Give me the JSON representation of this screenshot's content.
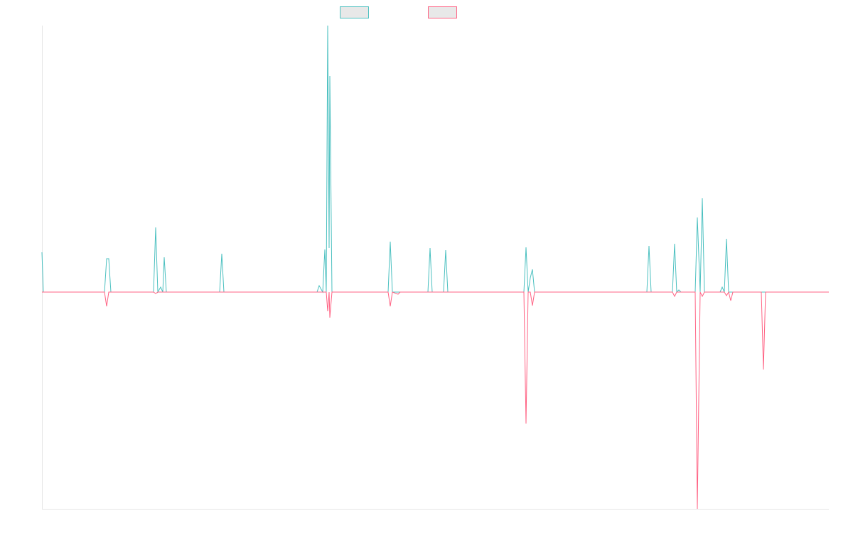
{
  "chart_data": {
    "type": "line",
    "x": [
      59,
      61,
      147,
      150,
      153,
      156,
      216,
      219,
      222,
      226,
      229,
      231,
      234,
      309,
      312,
      315,
      446,
      449,
      454,
      457,
      459,
      461,
      463,
      464,
      467,
      546,
      549,
      552,
      560,
      563,
      602,
      605,
      608,
      624,
      627,
      630,
      737,
      740,
      743,
      746,
      749,
      752,
      910,
      913,
      916,
      946,
      949,
      952,
      955,
      958,
      978,
      981,
      985,
      988,
      991,
      1013,
      1016,
      1019,
      1022,
      1025,
      1028,
      1031,
      1071,
      1074,
      1077,
      1166
    ],
    "xlim": [
      59,
      1166
    ],
    "ylim": [
      -305,
      375
    ],
    "series": [
      {
        "color": "#4bc0c0",
        "values": [
          56,
          0,
          0,
          47,
          47,
          0,
          0,
          91,
          0,
          7,
          0,
          49,
          0,
          0,
          54,
          0,
          0,
          9,
          0,
          60,
          0,
          375,
          62,
          304,
          0,
          0,
          71,
          0,
          0,
          0,
          0,
          62,
          0,
          0,
          59,
          0,
          0,
          63,
          0,
          20,
          32,
          0,
          0,
          65,
          0,
          0,
          68,
          0,
          3,
          0,
          0,
          105,
          0,
          132,
          0,
          0,
          7,
          0,
          75,
          0,
          0,
          0,
          0,
          0,
          0,
          0
        ]
      },
      {
        "color": "#ff6384",
        "values": [
          0,
          0,
          0,
          -20,
          0,
          0,
          0,
          -2,
          0,
          0,
          0,
          0,
          0,
          0,
          0,
          0,
          0,
          0,
          0,
          0,
          0,
          -27,
          0,
          -36,
          0,
          0,
          -20,
          0,
          -3,
          0,
          0,
          0,
          0,
          0,
          0,
          0,
          0,
          -185,
          0,
          0,
          -19,
          0,
          0,
          0,
          0,
          0,
          -6,
          0,
          0,
          0,
          0,
          -305,
          0,
          -6,
          0,
          0,
          0,
          0,
          -5,
          0,
          -12,
          0,
          0,
          -109,
          0,
          0
        ]
      }
    ],
    "legend": "top"
  }
}
